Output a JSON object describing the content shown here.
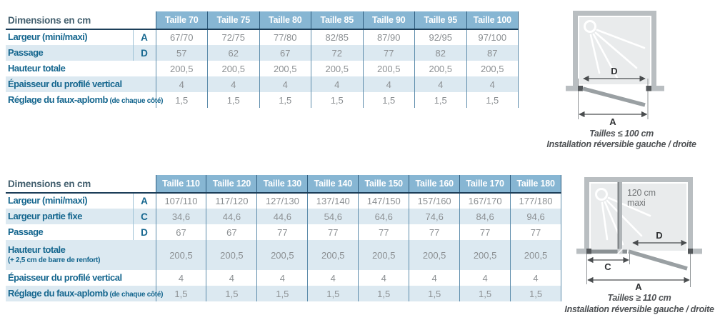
{
  "colors": {
    "header_blue": "#87b6d3",
    "row_stripe": "#dce9f1",
    "label_teal": "#16678f",
    "title_slate": "#44606f",
    "header_rule_navy": "#1c3e59",
    "value_gray": "#8c9093",
    "diagram_wall_gray": "#b9bec1",
    "diagram_glass_gray": "#e9ebec",
    "diagram_door_gray": "#9aa0a3",
    "diagram_profile_dark": "#54585b"
  },
  "tables": [
    {
      "corner_label": "Dimensions en cm",
      "columns": [
        "Taille 70",
        "Taille 75",
        "Taille 80",
        "Taille 85",
        "Taille 90",
        "Taille 95",
        "Taille 100"
      ],
      "rows": [
        {
          "label": "Largeur (mini/maxi)",
          "letter": "A",
          "values": [
            "67/70",
            "72/75",
            "77/80",
            "82/85",
            "87/90",
            "92/95",
            "97/100"
          ]
        },
        {
          "label": "Passage",
          "letter": "D",
          "values": [
            "57",
            "62",
            "67",
            "72",
            "77",
            "82",
            "87"
          ]
        },
        {
          "label": "Hauteur totale",
          "values": [
            "200,5",
            "200,5",
            "200,5",
            "200,5",
            "200,5",
            "200,5",
            "200,5"
          ]
        },
        {
          "label": "Épaisseur du profilé vertical",
          "values": [
            "4",
            "4",
            "4",
            "4",
            "4",
            "4",
            "4"
          ]
        },
        {
          "label": "Réglage du faux-aplomb",
          "sublabel": "(de chaque côté)",
          "sublabel_inline": true,
          "values": [
            "1,5",
            "1,5",
            "1,5",
            "1,5",
            "1,5",
            "1,5",
            "1,5"
          ]
        }
      ]
    },
    {
      "corner_label": "Dimensions en cm",
      "columns": [
        "Taille 110",
        "Taille 120",
        "Taille 130",
        "Taille 140",
        "Taille 150",
        "Taille 160",
        "Taille 170",
        "Taille 180"
      ],
      "rows": [
        {
          "label": "Largeur (mini/maxi)",
          "letter": "A",
          "values": [
            "107/110",
            "117/120",
            "127/130",
            "137/140",
            "147/150",
            "157/160",
            "167/170",
            "177/180"
          ]
        },
        {
          "label": "Largeur partie fixe",
          "letter": "C",
          "values": [
            "34,6",
            "44,6",
            "44,6",
            "54,6",
            "64,6",
            "74,6",
            "84,6",
            "94,6"
          ]
        },
        {
          "label": "Passage",
          "letter": "D",
          "values": [
            "67",
            "67",
            "77",
            "77",
            "77",
            "77",
            "77",
            "77"
          ]
        },
        {
          "label": "Hauteur totale",
          "sublabel": "(+ 2,5 cm de barre de renfort)",
          "sublabel_inline": false,
          "values": [
            "200,5",
            "200,5",
            "200,5",
            "200,5",
            "200,5",
            "200,5",
            "200,5",
            "200,5"
          ]
        },
        {
          "label": "Épaisseur du profilé vertical",
          "values": [
            "4",
            "4",
            "4",
            "4",
            "4",
            "4",
            "4",
            "4"
          ]
        },
        {
          "label": "Réglage du faux-aplomb",
          "sublabel": "(de chaque côté)",
          "sublabel_inline": true,
          "values": [
            "1,5",
            "1,5",
            "1,5",
            "1,5",
            "1,5",
            "1,5",
            "1,5",
            "1,5"
          ]
        }
      ]
    }
  ],
  "diagrams": [
    {
      "d_label": "D",
      "a_label": "A",
      "caption_line1": "Tailles ≤ 100 cm",
      "caption_line2": "Installation réversible gauche / droite"
    },
    {
      "d_label": "D",
      "c_label": "C",
      "a_label": "A",
      "bar_note_line1": "120 cm",
      "bar_note_line2": "maxi",
      "caption_line1": "Tailles ≥ 110 cm",
      "caption_line2": "Installation réversible gauche / droite"
    }
  ]
}
